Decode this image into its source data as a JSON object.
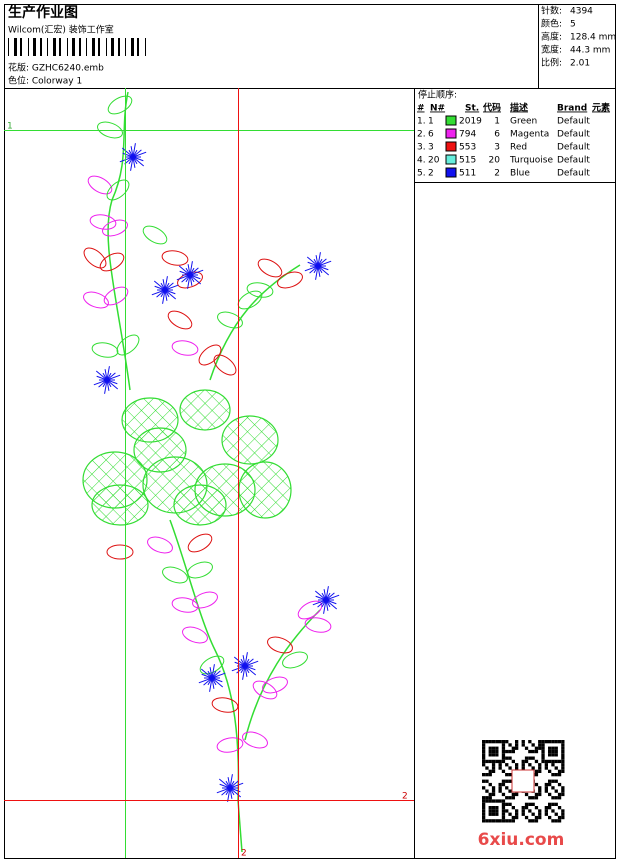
{
  "header": {
    "title": "生产作业图",
    "company": "Wilcom(汇宏) 装饰工作室",
    "design": "花版:  GZHC6240.emb",
    "colorway": "色位:  Colorway 1"
  },
  "info": [
    {
      "label": "针数:",
      "value": "4394"
    },
    {
      "label": "颜色:",
      "value": "5"
    },
    {
      "label": "高度:",
      "value": "128.4 mm"
    },
    {
      "label": "宽度:",
      "value": "44.3 mm"
    },
    {
      "label": "比例:",
      "value": "2.01"
    }
  ],
  "table": {
    "title": "停止顺序:",
    "columns": [
      "#",
      "N#",
      "St.",
      "代码",
      "描述",
      "Brand",
      "元素"
    ],
    "rows": [
      [
        "1.",
        "1",
        "#33dd33",
        "2019",
        "1",
        "Green",
        "Default"
      ],
      [
        "2.",
        "6",
        "#ee22ee",
        "794",
        "6",
        "Magenta",
        "Default"
      ],
      [
        "3.",
        "3",
        "#ee1111",
        "553",
        "3",
        "Red",
        "Default"
      ],
      [
        "4.",
        "20",
        "#66eedd",
        "515",
        "20",
        "Turquoise",
        "Default"
      ],
      [
        "5.",
        "2",
        "#1111ee",
        "511",
        "2",
        "Blue",
        "Default"
      ]
    ]
  },
  "guides": {
    "h1": "1",
    "h2": "2",
    "v2": "2"
  },
  "watermark": "6xiu.com"
}
